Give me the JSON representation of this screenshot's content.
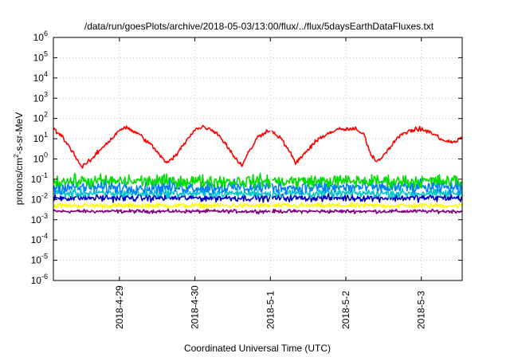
{
  "chart_data": {
    "type": "line",
    "title": "/data/run/goesPlots/archive/2018-05-03/13:00/flux/../flux/5daysEarthDataFluxes.txt",
    "xlabel": "Coordinated Universal Time (UTC)",
    "ylabel": {
      "base": "protons/cm",
      "sup": "2",
      "rest": "-s-sr-MeV"
    },
    "y_scale": "log",
    "ylim_exponents": [
      -6,
      6
    ],
    "y_ticks": [
      {
        "base": "10",
        "exp": "-6"
      },
      {
        "base": "10",
        "exp": "-5"
      },
      {
        "base": "10",
        "exp": "-4"
      },
      {
        "base": "10",
        "exp": "-3"
      },
      {
        "base": "10",
        "exp": "-2"
      },
      {
        "base": "10",
        "exp": "-1"
      },
      {
        "base": "10",
        "exp": "0"
      },
      {
        "base": "10",
        "exp": "1"
      },
      {
        "base": "10",
        "exp": "2"
      },
      {
        "base": "10",
        "exp": "3"
      },
      {
        "base": "10",
        "exp": "4"
      },
      {
        "base": "10",
        "exp": "5"
      },
      {
        "base": "10",
        "exp": "6"
      }
    ],
    "x_range_days": [
      "2018-04-28 03:00",
      "2018-05-03 13:00"
    ],
    "x_ticks": [
      "2018-4-29",
      "2018-4-30",
      "2018-5-1",
      "2018-5-2",
      "2018-5-3"
    ],
    "grid": true,
    "data_gap": [
      "2018-05-01 00:00",
      "2018-05-01 00:30"
    ],
    "series": [
      {
        "color": "#ff0000",
        "noise": 0.18,
        "points": [
          [
            "2018-04-28 03:00",
            30
          ],
          [
            "2018-04-28 06:00",
            12
          ],
          [
            "2018-04-28 09:00",
            2.5
          ],
          [
            "2018-04-28 12:00",
            0.4
          ],
          [
            "2018-04-28 15:00",
            0.9
          ],
          [
            "2018-04-28 18:00",
            3
          ],
          [
            "2018-04-28 22:00",
            12
          ],
          [
            "2018-04-29 00:00",
            28
          ],
          [
            "2018-04-29 02:00",
            35
          ],
          [
            "2018-04-29 06:00",
            18
          ],
          [
            "2018-04-29 10:00",
            5
          ],
          [
            "2018-04-29 13:00",
            1.5
          ],
          [
            "2018-04-29 15:00",
            0.6
          ],
          [
            "2018-04-29 18:00",
            1.5
          ],
          [
            "2018-04-29 22:00",
            12
          ],
          [
            "2018-04-30 00:00",
            28
          ],
          [
            "2018-04-30 03:00",
            40
          ],
          [
            "2018-04-30 07:00",
            20
          ],
          [
            "2018-04-30 10:00",
            5
          ],
          [
            "2018-04-30 13:00",
            1
          ],
          [
            "2018-04-30 15:00",
            0.5
          ],
          [
            "2018-04-30 17:00",
            2
          ],
          [
            "2018-04-30 20:00",
            12
          ],
          [
            "2018-04-30 23:30",
            28
          ],
          [
            "2018-05-01 00:30",
            22
          ],
          [
            "2018-05-01 03:00",
            12
          ],
          [
            "2018-05-01 06:00",
            2.5
          ],
          [
            "2018-05-01 08:00",
            0.6
          ],
          [
            "2018-05-01 11:00",
            2
          ],
          [
            "2018-05-01 16:00",
            12
          ],
          [
            "2018-05-01 21:00",
            28
          ],
          [
            "2018-05-02 03:00",
            30
          ],
          [
            "2018-05-02 06:00",
            14
          ],
          [
            "2018-05-02 08:00",
            1.5
          ],
          [
            "2018-05-02 10:00",
            0.8
          ],
          [
            "2018-05-02 12:00",
            1.5
          ],
          [
            "2018-05-02 16:00",
            10
          ],
          [
            "2018-05-02 20:00",
            25
          ],
          [
            "2018-05-03 00:00",
            30
          ],
          [
            "2018-05-03 03:00",
            20
          ],
          [
            "2018-05-03 08:00",
            7
          ],
          [
            "2018-05-03 11:00",
            7
          ],
          [
            "2018-05-03 13:00",
            12
          ]
        ]
      },
      {
        "color": "#00e000",
        "level": 0.08,
        "noise": 0.55
      },
      {
        "color": "#0080ff",
        "level": 0.04,
        "noise": 0.55
      },
      {
        "color": "#00c8c8",
        "level": 0.02,
        "noise": 0.35
      },
      {
        "color": "#0000c0",
        "level": 0.012,
        "noise": 0.3
      },
      {
        "color": "#ffff00",
        "level": 0.005,
        "noise": 0.2
      },
      {
        "color": "#800080",
        "level": 0.0026,
        "noise": 0.15
      }
    ]
  }
}
